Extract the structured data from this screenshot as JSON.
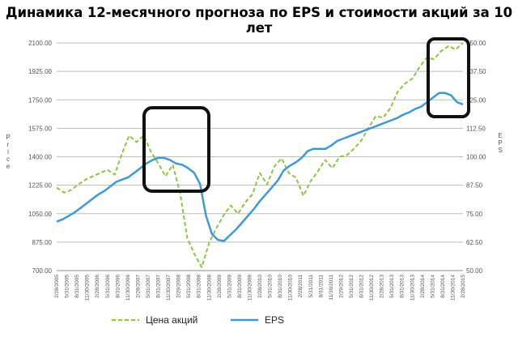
{
  "chart_data": {
    "type": "line",
    "title": "Динамика 12-месячного прогноза по EPS и стоимости акций за 10 лет",
    "y_left": {
      "label": "Price",
      "ticks": [
        "700.00",
        "875.00",
        "1050.00",
        "1225.00",
        "1400.00",
        "1575.00",
        "1750.00",
        "1925.00",
        "2100.00"
      ],
      "range": [
        700,
        2100
      ]
    },
    "y_right": {
      "label": "EPS",
      "ticks": [
        "50.00",
        "62.50",
        "75.00",
        "87.50",
        "100.00",
        "112.50",
        "125.00",
        "137.50",
        "150.00"
      ],
      "range": [
        50,
        150
      ]
    },
    "x_ticks": [
      "2/28/2005",
      "5/31/2005",
      "8/31/2005",
      "11/30/2005",
      "2/28/2006",
      "5/31/2006",
      "8/31/2006",
      "11/30/2006",
      "2/28/2007",
      "5/31/2007",
      "8/31/2007",
      "11/30/2007",
      "2/29/2008",
      "5/31/2008",
      "8/31/2008",
      "11/30/2008",
      "2/28/2009",
      "5/31/2009",
      "8/31/2009",
      "11/30/2009",
      "2/28/2010",
      "5/31/2010",
      "8/31/2010",
      "11/30/2010",
      "2/28/2011",
      "5/31/2011",
      "8/31/2011",
      "11/30/2011",
      "2/29/2012",
      "5/31/2012",
      "8/31/2012",
      "11/30/2012",
      "2/28/2013",
      "5/31/2013",
      "8/31/2013",
      "11/30/2013",
      "2/28/2014",
      "5/31/2014",
      "8/31/2014",
      "11/30/2014",
      "2/28/2015"
    ],
    "series": [
      {
        "name": "Цена акций",
        "axis": "left",
        "color": "#8dc63f",
        "style": "dashed",
        "values": [
          1210,
          1180,
          1195,
          1230,
          1260,
          1280,
          1300,
          1320,
          1290,
          1420,
          1530,
          1490,
          1530,
          1430,
          1360,
          1280,
          1350,
          1180,
          900,
          800,
          720,
          870,
          960,
          1040,
          1100,
          1050,
          1120,
          1170,
          1300,
          1230,
          1340,
          1390,
          1300,
          1270,
          1160,
          1250,
          1310,
          1380,
          1330,
          1400,
          1410,
          1450,
          1500,
          1580,
          1650,
          1640,
          1700,
          1800,
          1850,
          1880,
          1950,
          2010,
          2000,
          2050,
          2080,
          2060,
          2100
        ]
      },
      {
        "name": "EPS",
        "axis": "right",
        "color": "#3b9ad9",
        "style": "solid",
        "values": [
          71.5,
          72.5,
          74,
          75.5,
          77.5,
          79.5,
          81.5,
          83.5,
          85,
          87,
          89,
          90,
          91,
          93,
          95,
          97,
          98.5,
          99.5,
          99.5,
          98.5,
          97,
          96.5,
          95,
          93,
          88,
          74,
          66,
          63.5,
          63,
          65.5,
          68,
          71,
          74,
          77,
          80.5,
          83.5,
          86.5,
          89.5,
          94,
          96,
          97.5,
          99.5,
          102.5,
          103.5,
          103.5,
          103.5,
          105,
          107,
          108,
          109,
          110,
          111,
          112,
          113,
          114,
          115,
          116,
          117,
          118.5,
          119.5,
          121,
          122,
          124,
          126,
          128,
          128,
          127,
          124,
          123
        ]
      }
    ],
    "annotations": [
      "highlight-box-2007-2008",
      "highlight-box-2014-2015"
    ],
    "grid": "horizontal",
    "legend_position": "bottom"
  },
  "legend": {
    "price_label": "Цена акций",
    "eps_label": "EPS"
  }
}
